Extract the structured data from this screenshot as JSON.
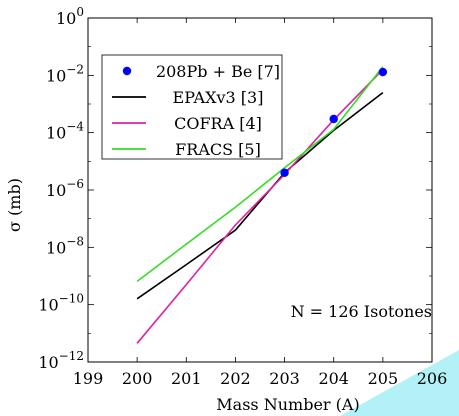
{
  "chart_data": {
    "type": "line",
    "xlabel": "Mass Number (A)",
    "ylabel": "σ (mb)",
    "xlim": [
      199,
      206
    ],
    "ylim_log10": [
      -12,
      0
    ],
    "y_scale": "log",
    "x_ticks": [
      "199",
      "200",
      "201",
      "202",
      "203",
      "204",
      "205",
      "206"
    ],
    "y_ticks": [
      {
        "base": "10",
        "exp": "0"
      },
      {
        "base": "10",
        "exp": "−2"
      },
      {
        "base": "10",
        "exp": "−4"
      },
      {
        "base": "10",
        "exp": "−6"
      },
      {
        "base": "10",
        "exp": "−8"
      },
      {
        "base": "10",
        "exp": "−10"
      },
      {
        "base": "10",
        "exp": "−12"
      }
    ],
    "grid": false,
    "legend_position": "top-left",
    "annotation": "N = 126 Isotones",
    "series": [
      {
        "name": "208Pb + Be [7]",
        "kind": "scatter",
        "color": "#0000ff",
        "x": [
          203,
          204,
          205
        ],
        "y": [
          4e-06,
          0.0003,
          0.013
        ]
      },
      {
        "name": "EPAXv3 [3]",
        "kind": "line",
        "color": "#000000",
        "x": [
          200,
          201,
          202,
          203,
          204,
          205
        ],
        "y": [
          1.6e-10,
          2.5e-09,
          4e-08,
          4e-06,
          0.00012,
          0.0025
        ]
      },
      {
        "name": "COFRA [4]",
        "kind": "line",
        "color": "#e020a0",
        "x": [
          200,
          201,
          202,
          203,
          204,
          205
        ],
        "y": [
          4.5e-12,
          5e-10,
          6e-08,
          3.5e-06,
          0.00028,
          0.016
        ]
      },
      {
        "name": "FRACS [5]",
        "kind": "line",
        "color": "#33dd22",
        "x": [
          200,
          201,
          202,
          203,
          204,
          205
        ],
        "y": [
          6.5e-10,
          1.3e-08,
          2.5e-07,
          6e-06,
          0.00013,
          0.02
        ]
      }
    ]
  }
}
